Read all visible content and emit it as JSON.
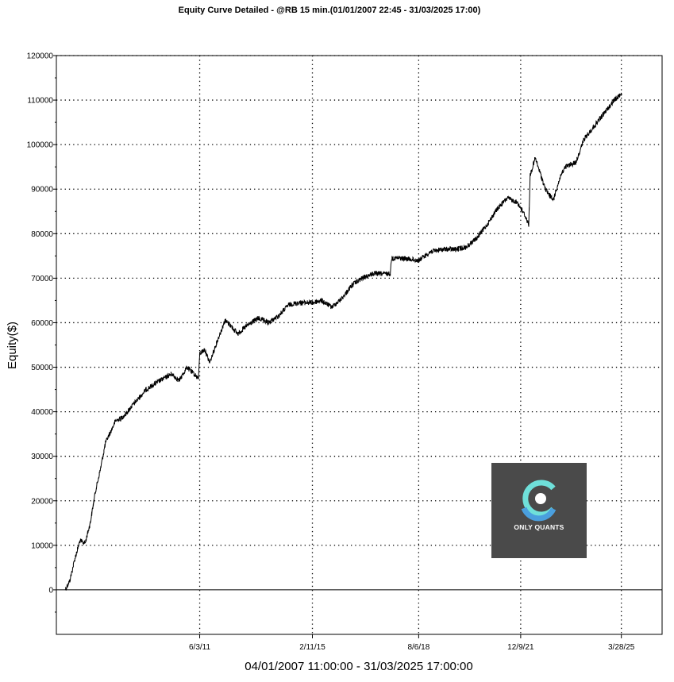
{
  "chart_data": {
    "type": "line",
    "title": "Equity Curve Detailed - @RB 15 min.(01/01/2007 22:45 - 31/03/2025 17:00)",
    "xlabel": "04/01/2007 11:00:00 - 31/03/2025 17:00:00",
    "ylabel": "Equity($)",
    "ylim": [
      -10000,
      120000
    ],
    "xlim": [
      "2007-01-04",
      "2025-03-31"
    ],
    "y_ticks": [
      0,
      10000,
      20000,
      30000,
      40000,
      50000,
      60000,
      70000,
      80000,
      90000,
      100000,
      110000,
      120000
    ],
    "x_ticks": [
      "6/3/11",
      "2/11/15",
      "8/6/18",
      "12/9/21",
      "3/28/25"
    ],
    "x_tick_dates": [
      "2011-06-03",
      "2015-02-11",
      "2018-08-06",
      "2021-12-09",
      "2025-03-28"
    ],
    "grid": true,
    "series": [
      {
        "x": [
          "2007-01-04",
          "2007-03-01",
          "2007-05-01",
          "2007-07-01",
          "2007-09-01",
          "2007-11-01",
          "2008-01-01",
          "2008-03-01",
          "2008-05-01",
          "2008-07-01",
          "2008-09-01",
          "2008-11-01",
          "2009-01-01",
          "2009-03-01",
          "2009-06-01",
          "2009-09-01",
          "2010-01-01",
          "2010-04-01",
          "2010-07-01",
          "2010-10-01",
          "2011-01-01",
          "2011-05-20",
          "2011-06-03",
          "2011-08-01",
          "2011-10-01",
          "2012-01-01",
          "2012-04-01",
          "2012-06-01",
          "2012-09-01",
          "2013-01-01",
          "2013-05-01",
          "2013-09-01",
          "2014-01-01",
          "2014-05-01",
          "2014-09-01",
          "2015-02-11",
          "2015-06-01",
          "2015-10-01",
          "2016-02-01",
          "2016-06-01",
          "2016-10-01",
          "2017-02-01",
          "2017-06-01",
          "2017-09-01",
          "2017-09-15",
          "2018-01-01",
          "2018-08-06",
          "2019-01-01",
          "2019-06-01",
          "2019-11-01",
          "2020-03-01",
          "2020-07-01",
          "2020-11-01",
          "2021-03-01",
          "2021-07-01",
          "2021-11-01",
          "2022-02-01",
          "2022-03-15",
          "2022-04-01",
          "2022-06-01",
          "2022-10-01",
          "2023-01-01",
          "2023-04-01",
          "2023-06-01",
          "2023-10-01",
          "2024-01-01",
          "2024-05-01",
          "2024-09-01",
          "2025-01-01",
          "2025-03-31"
        ],
        "y": [
          0,
          2000,
          7000,
          11000,
          10500,
          15000,
          22000,
          27000,
          33000,
          35500,
          38000,
          38500,
          39500,
          41000,
          43000,
          45000,
          46500,
          47500,
          48500,
          47000,
          50000,
          47500,
          53000,
          54000,
          51000,
          56000,
          60500,
          59500,
          57500,
          59500,
          61000,
          60000,
          61500,
          64000,
          64500,
          64500,
          65000,
          63500,
          65500,
          68500,
          70000,
          71000,
          71000,
          71000,
          74500,
          74500,
          74000,
          76000,
          76500,
          76500,
          77000,
          79000,
          82000,
          85500,
          88000,
          87000,
          84000,
          82000,
          93000,
          97000,
          90000,
          87500,
          93000,
          95000,
          96000,
          101000,
          104000,
          107000,
          110000,
          111500
        ]
      }
    ]
  },
  "watermark": {
    "text": "ONLY QUANTS",
    "bg": "#4a4a4a",
    "ring_top": "#6fe0da",
    "ring_bottom": "#4a9fde"
  },
  "colors": {
    "line": "#000000",
    "grid": "#000000",
    "background": "#ffffff"
  }
}
